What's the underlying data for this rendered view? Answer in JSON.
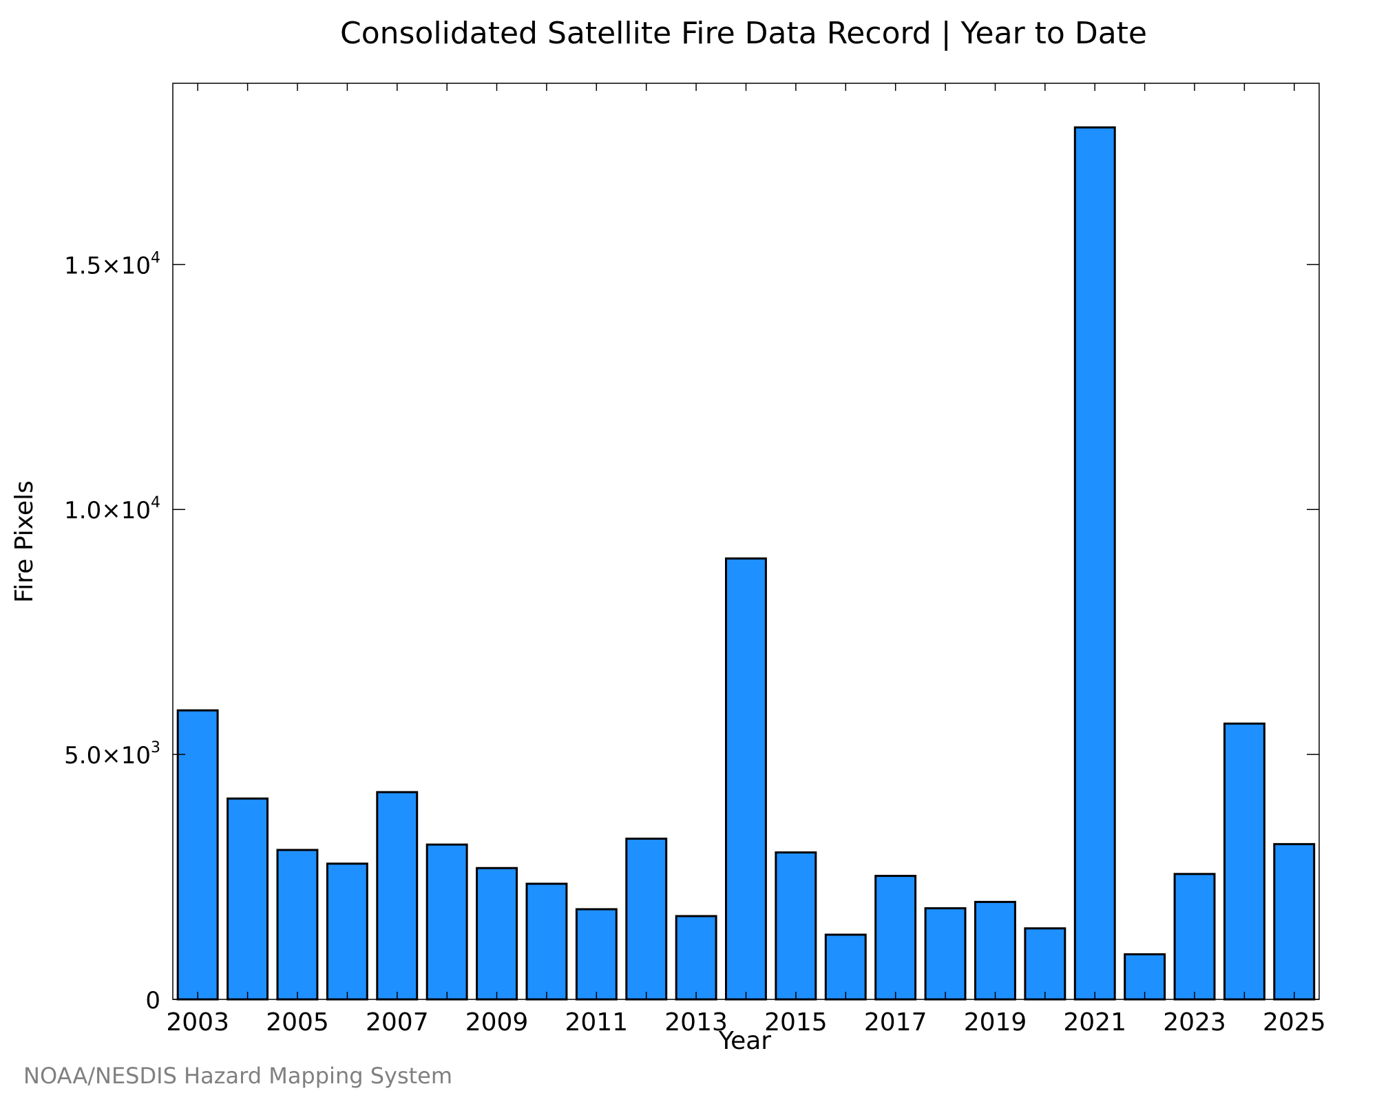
{
  "credit": "NOAA/NESDIS Hazard Mapping System",
  "chart_data": {
    "type": "bar",
    "title": "Consolidated Satellite Fire Data Record | Year to Date",
    "xlabel": "Year",
    "ylabel": "Fire Pixels",
    "categories": [
      "2003",
      "2004",
      "2005",
      "2006",
      "2007",
      "2008",
      "2009",
      "2010",
      "2011",
      "2012",
      "2013",
      "2014",
      "2015",
      "2016",
      "2017",
      "2018",
      "2019",
      "2020",
      "2021",
      "2022",
      "2023",
      "2024",
      "2025"
    ],
    "values": [
      5900,
      4100,
      3050,
      2770,
      4230,
      3160,
      2680,
      2360,
      1840,
      3280,
      1700,
      9000,
      3000,
      1320,
      2520,
      1860,
      1990,
      1450,
      17800,
      920,
      2560,
      5630,
      3170
    ],
    "xticks": [
      "2003",
      "2005",
      "2007",
      "2009",
      "2011",
      "2013",
      "2015",
      "2017",
      "2019",
      "2021",
      "2023",
      "2025"
    ],
    "yticks": [
      {
        "value": 0,
        "mantissa": "0",
        "exponent": ""
      },
      {
        "value": 5000,
        "mantissa": "5.0×10",
        "exponent": "3"
      },
      {
        "value": 10000,
        "mantissa": "1.0×10",
        "exponent": "4"
      },
      {
        "value": 15000,
        "mantissa": "1.5×10",
        "exponent": "4"
      }
    ],
    "ylim": [
      0,
      18700
    ],
    "xlim": [
      2002.5,
      2025.5
    ],
    "grid": false,
    "legend": "none",
    "bar_color": "#1e90ff",
    "edge_color": "#000000"
  }
}
